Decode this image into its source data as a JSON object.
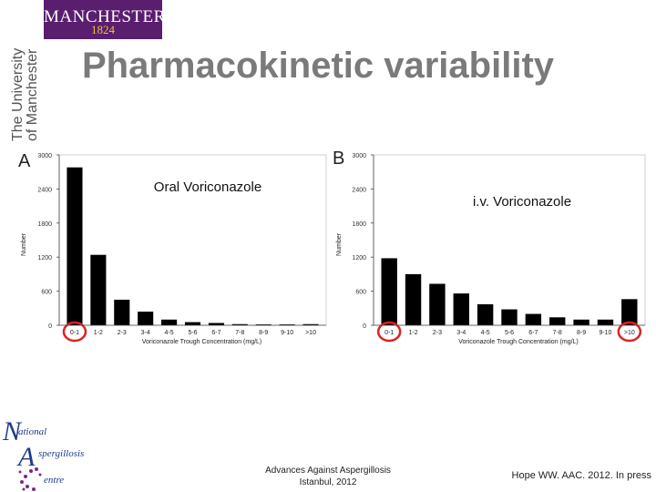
{
  "logo": {
    "word": "MANCHESTER",
    "year": "1824",
    "colors": {
      "bg": "#5a1e6e",
      "year": "#f1c232"
    }
  },
  "university": {
    "line1": "The University",
    "line2": "of Manchester"
  },
  "title": "Pharmacokinetic variability",
  "chart_data": [
    {
      "type": "bar",
      "panel": "A",
      "title": "Oral Voriconazole",
      "xlabel": "Voriconazole Trough Concentration (mg/L)",
      "ylabel": "Number",
      "categories": [
        "0-1",
        "1-2",
        "2-3",
        "3-4",
        "4-5",
        "5-6",
        "6-7",
        "7-8",
        "8-9",
        "9-10",
        ">10"
      ],
      "values": [
        2780,
        1240,
        450,
        240,
        100,
        55,
        40,
        20,
        15,
        15,
        20
      ],
      "yticks": [
        0,
        600,
        1200,
        1800,
        2400,
        3000
      ],
      "ylim": [
        0,
        3000
      ],
      "highlighted": [
        "0-1"
      ],
      "bar_color": "#000000",
      "highlight_color": "#e02020"
    },
    {
      "type": "bar",
      "panel": "B",
      "title": "i.v. Voriconazole",
      "xlabel": "Voriconazole Trough Concentration (mg/L)",
      "ylabel": "Number",
      "categories": [
        "0-1",
        "1-2",
        "2-3",
        "3-4",
        "4-5",
        "5-6",
        "6-7",
        "7-8",
        "8-9",
        "9-10",
        ">10"
      ],
      "values": [
        1180,
        900,
        730,
        560,
        370,
        280,
        200,
        140,
        100,
        100,
        460
      ],
      "yticks": [
        0,
        600,
        1200,
        1800,
        2400,
        3000
      ],
      "ylim": [
        0,
        3000
      ],
      "highlighted": [
        "0-1",
        ">10"
      ],
      "bar_color": "#000000",
      "highlight_color": "#e02020"
    }
  ],
  "nac": {
    "l1": "ational",
    "l2": "spergillosis",
    "l3": "entre",
    "colors": {
      "blue": "#1f3a8a",
      "purple": "#7a2a8a"
    }
  },
  "footer": {
    "center_line1": "Advances Against Aspergillosis",
    "center_line2": "Istanbul, 2012",
    "right": "Hope WW. AAC. 2012. In press"
  }
}
